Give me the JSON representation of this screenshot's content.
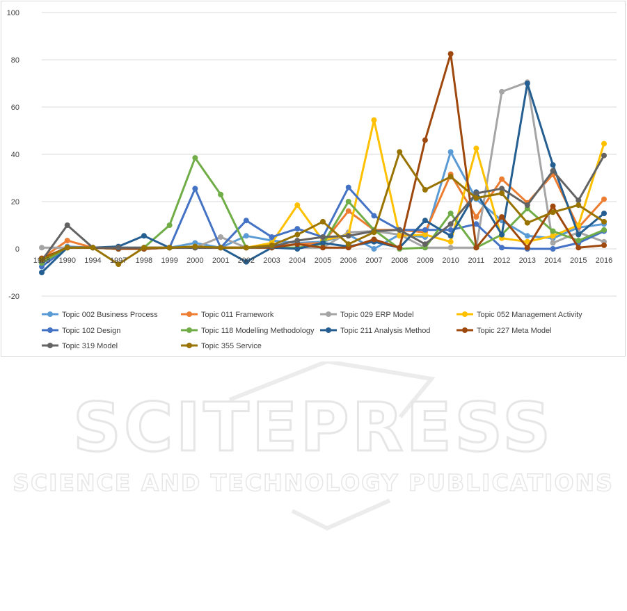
{
  "chart_data": {
    "type": "line",
    "title": "",
    "xlabel": "",
    "ylabel": "",
    "ylim": [
      -20,
      100
    ],
    "yticks": [
      -20,
      0,
      20,
      40,
      60,
      80,
      100
    ],
    "grid": true,
    "legend_position": "bottom",
    "categories": [
      "1988",
      "1990",
      "1994",
      "1997",
      "1998",
      "1999",
      "2000",
      "2001",
      "2002",
      "2003",
      "2004",
      "2005",
      "2006",
      "2007",
      "2008",
      "2009",
      "2010",
      "2011",
      "2012",
      "2013",
      "2014",
      "2015",
      "2016"
    ],
    "series": [
      {
        "name": "Topic 002 Business Process",
        "color": "#5b9bd5",
        "values": [
          -5,
          1,
          0.5,
          0.5,
          0.5,
          0.5,
          2.5,
          0.5,
          5.5,
          3.5,
          2.5,
          3,
          6,
          0,
          6,
          5,
          41,
          21,
          12,
          5.5,
          4.5,
          9,
          10.5
        ]
      },
      {
        "name": "Topic 011 Framework",
        "color": "#ed7d31",
        "values": [
          -4,
          3.5,
          0.5,
          0,
          0,
          0.5,
          0.5,
          0.5,
          0.5,
          1,
          2,
          2.5,
          16,
          8,
          8,
          7,
          31.5,
          13.5,
          29.5,
          19.5,
          31.5,
          9,
          21
        ]
      },
      {
        "name": "Topic 029 ERP Model",
        "color": "#a5a5a5",
        "values": [
          0.5,
          0.5,
          0.5,
          0,
          0,
          0.5,
          0.5,
          5,
          0.5,
          0.5,
          0.5,
          0.5,
          7,
          7.5,
          6,
          0.5,
          0.5,
          0.5,
          66.5,
          70.5,
          2.5,
          7,
          3
        ]
      },
      {
        "name": "Topic 052 Management Activity",
        "color": "#ffc000",
        "values": [
          -5,
          0.5,
          0.5,
          0,
          0,
          0.5,
          0.5,
          0.5,
          0.5,
          2.5,
          18.5,
          3.5,
          6,
          54.5,
          5.5,
          6,
          3,
          42.5,
          4.5,
          3,
          5.5,
          10,
          44.5
        ]
      },
      {
        "name": "Topic 102 Design",
        "color": "#4472c4",
        "values": [
          -7.5,
          0.5,
          0.5,
          0,
          0,
          0.5,
          25.5,
          0.5,
          12,
          5,
          8.5,
          5,
          26,
          14,
          8,
          8,
          8,
          10.5,
          0.5,
          0,
          0,
          2.5,
          7.5
        ]
      },
      {
        "name": "Topic 118 Modelling Methodology",
        "color": "#70ad47",
        "values": [
          -6,
          0.5,
          0.5,
          0,
          0.5,
          10,
          38.5,
          23,
          0.5,
          0.5,
          0.5,
          2,
          20,
          8,
          0,
          0.5,
          15,
          0.5,
          6,
          17,
          7.5,
          3.5,
          8
        ]
      },
      {
        "name": "Topic 211 Analysis Method",
        "color": "#255e91",
        "values": [
          -10,
          0.5,
          0.5,
          1,
          5.5,
          0.5,
          0.5,
          0.5,
          -5.5,
          0.5,
          0,
          2.5,
          1,
          3,
          0.5,
          12,
          5.5,
          24,
          6,
          70,
          35.5,
          6,
          15
        ]
      },
      {
        "name": "Topic 227 Meta Model",
        "color": "#9e480e",
        "values": [
          -4,
          0.5,
          0.5,
          0,
          0,
          0.5,
          0.5,
          0.5,
          0.5,
          0.5,
          2,
          0.5,
          0.5,
          4,
          0.5,
          46,
          82.5,
          0.5,
          13.5,
          0.5,
          18,
          0.5,
          1.5
        ]
      },
      {
        "name": "Topic 319 Model",
        "color": "#636363",
        "values": [
          -5,
          10,
          0.5,
          0.5,
          0.5,
          0.5,
          0.5,
          0.5,
          0.5,
          1,
          3.5,
          5,
          5.5,
          7.5,
          8,
          2,
          10.5,
          23.5,
          25.5,
          18.5,
          33,
          20.5,
          39.5
        ]
      },
      {
        "name": "Topic 355 Service",
        "color": "#997300",
        "values": [
          -4.5,
          0.5,
          0.5,
          -6.5,
          0.5,
          0.5,
          1,
          0.5,
          0.5,
          1.5,
          6,
          11.5,
          2,
          7,
          41,
          25,
          30.5,
          21.5,
          23.5,
          11,
          15.5,
          18.5,
          11.5
        ]
      }
    ]
  }
}
